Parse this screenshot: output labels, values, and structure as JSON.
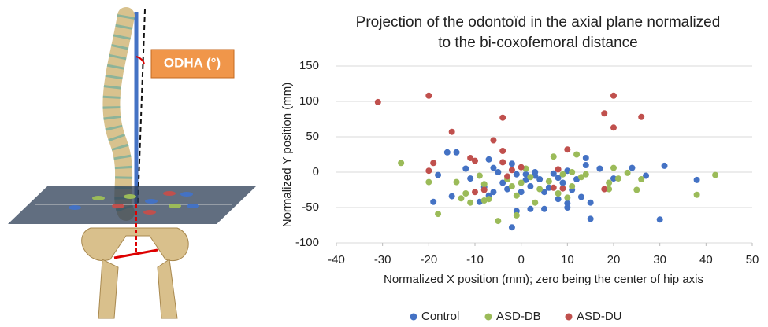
{
  "illustration": {
    "label": "ODHA (°)"
  },
  "chart_data": {
    "type": "scatter",
    "title": [
      "Projection of the odontoïd in the axial plane normalized",
      "to the bi-coxofemoral distance"
    ],
    "x_label": "Normalized X position (mm); zero being the center of hip axis",
    "y_label": "Normalized Y position (mm)",
    "xlim": [
      -40,
      50
    ],
    "xticks": [
      -40,
      -30,
      -20,
      -10,
      0,
      10,
      20,
      30,
      40,
      50
    ],
    "ylim": [
      -100,
      150
    ],
    "yticks": [
      -100,
      -50,
      0,
      50,
      100,
      150
    ],
    "grid": true,
    "legend": "bottom",
    "series": [
      {
        "name": "Control",
        "color": "#4472c4",
        "x": [
          -16,
          -14,
          -12,
          -11,
          -19,
          -18,
          -15,
          -8,
          -7,
          -6,
          -5,
          -6,
          -4,
          -3,
          -2,
          -2,
          -1,
          0,
          1,
          1,
          2,
          2,
          3,
          4,
          5,
          5,
          6,
          7,
          8,
          8,
          9,
          10,
          10,
          10,
          11,
          12,
          13,
          14,
          14,
          15,
          15,
          17,
          20,
          24,
          27,
          30,
          31,
          38,
          -9,
          -1,
          3,
          -7
        ],
        "y": [
          28,
          28,
          5,
          -9,
          -42,
          -4,
          -34,
          -21,
          18,
          6,
          0,
          -28,
          -15,
          -24,
          -78,
          12,
          -3,
          -28,
          -11,
          -3,
          -20,
          -52,
          -5,
          -10,
          -28,
          -52,
          -22,
          -2,
          -38,
          -8,
          -15,
          2,
          -50,
          -44,
          -25,
          -10,
          -35,
          10,
          20,
          -43,
          -66,
          5,
          -9,
          6,
          -5,
          -67,
          9,
          -11,
          -42,
          -55,
          0,
          -33
        ]
      },
      {
        "name": "ASD-DB",
        "color": "#9bbb59",
        "x": [
          -26,
          -18,
          -20,
          -12,
          -13,
          -9,
          -8,
          -5,
          -7,
          -1,
          -1,
          -3,
          0,
          1,
          2,
          4,
          6,
          7,
          8,
          9,
          10,
          11,
          11,
          12,
          13,
          19,
          20,
          19,
          21,
          23,
          25,
          26,
          38,
          42,
          -14,
          3,
          -2,
          14,
          -11,
          -8
        ],
        "y": [
          13,
          -59,
          -14,
          -30,
          -37,
          -5,
          -17,
          -69,
          -38,
          -61,
          -33,
          -10,
          -15,
          5,
          -7,
          -24,
          -13,
          22,
          -30,
          -3,
          -36,
          0,
          -20,
          25,
          -7,
          -24,
          6,
          -15,
          -9,
          -1,
          -25,
          -10,
          -32,
          -4,
          -14,
          -43,
          -20,
          -3,
          -43,
          -40
        ]
      },
      {
        "name": "ASD-DU",
        "color": "#c0504d",
        "x": [
          -31,
          -20,
          -15,
          -4,
          20,
          18,
          20,
          26,
          -20,
          -19,
          -11,
          -10,
          -4,
          -4,
          -6,
          0,
          8,
          10,
          -10,
          -8,
          -3,
          9,
          18,
          -2,
          7
        ],
        "y": [
          99,
          108,
          57,
          77,
          108,
          83,
          63,
          78,
          2,
          13,
          20,
          16,
          30,
          14,
          45,
          7,
          4,
          32,
          -28,
          -25,
          -6,
          -23,
          -24,
          3,
          -22
        ]
      }
    ]
  }
}
